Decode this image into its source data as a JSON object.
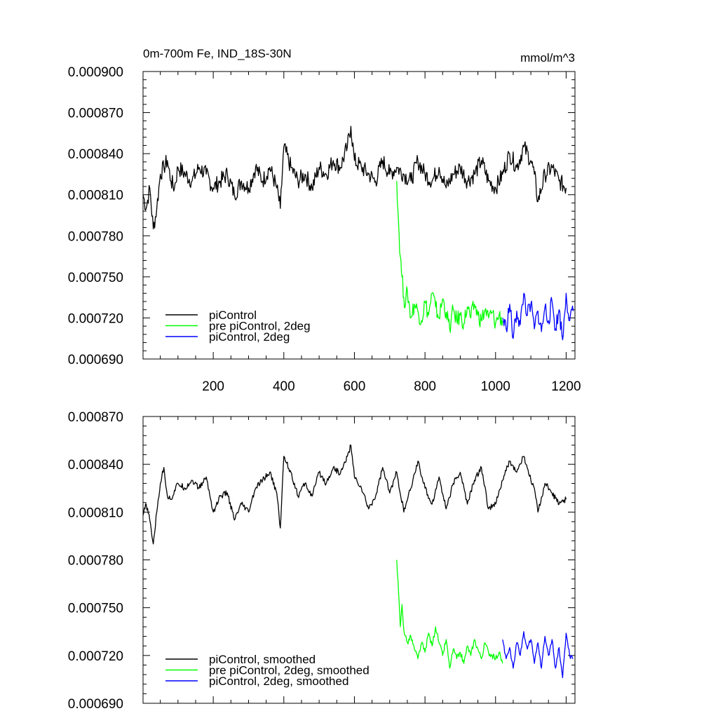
{
  "chart_data": [
    {
      "type": "line",
      "title": "0m-700m Fe, IND_18S-30N",
      "units": "mmol/m^3",
      "xlabel": "",
      "ylabel": "",
      "xlim": [
        1,
        1225
      ],
      "ylim": [
        0.00069,
        0.0009
      ],
      "xticks": [
        200,
        400,
        600,
        800,
        1000,
        1200
      ],
      "xtick_labels": [
        "200",
        "400",
        "600",
        "800",
        "1000",
        "1200"
      ],
      "yticks": [
        0.00069,
        0.00072,
        0.00075,
        0.00078,
        0.00081,
        0.00084,
        0.00087,
        0.0009
      ],
      "ytick_labels": [
        "0.000690",
        "0.000720",
        "0.000750",
        "0.000780",
        "0.000810",
        "0.000840",
        "0.000870",
        "0.000900"
      ],
      "legend_position": "bottom-left",
      "series": [
        {
          "name": "piControl",
          "color": "#000000",
          "x": [
            1,
            10,
            20,
            30,
            40,
            50,
            60,
            70,
            80,
            90,
            100,
            120,
            140,
            160,
            180,
            200,
            220,
            240,
            260,
            280,
            300,
            320,
            340,
            360,
            380,
            390,
            400,
            420,
            440,
            460,
            480,
            500,
            520,
            540,
            560,
            580,
            590,
            600,
            620,
            640,
            660,
            680,
            700,
            720,
            740,
            760,
            780,
            800,
            820,
            840,
            860,
            880,
            900,
            920,
            940,
            960,
            980,
            1000,
            1020,
            1040,
            1060,
            1080,
            1100,
            1110,
            1120,
            1140,
            1160,
            1180,
            1200
          ],
          "y": [
            0.00081,
            0.0008,
            0.000815,
            0.000785,
            0.0008,
            0.000825,
            0.00083,
            0.000835,
            0.00082,
            0.000815,
            0.00083,
            0.000825,
            0.00082,
            0.00083,
            0.000825,
            0.000815,
            0.00082,
            0.000825,
            0.00081,
            0.00082,
            0.000815,
            0.00083,
            0.00082,
            0.00083,
            0.000815,
            0.0008,
            0.000845,
            0.00083,
            0.00082,
            0.000825,
            0.000815,
            0.00083,
            0.000825,
            0.000835,
            0.00083,
            0.000845,
            0.00086,
            0.000835,
            0.00083,
            0.000825,
            0.00082,
            0.000835,
            0.000825,
            0.00083,
            0.000825,
            0.00082,
            0.000835,
            0.000825,
            0.00082,
            0.00083,
            0.000815,
            0.000825,
            0.00083,
            0.00082,
            0.000825,
            0.000835,
            0.00082,
            0.000815,
            0.000825,
            0.00084,
            0.00083,
            0.000845,
            0.000835,
            0.000825,
            0.000805,
            0.000825,
            0.00083,
            0.00082,
            0.000815
          ]
        },
        {
          "name": "pre piControl, 2deg",
          "color": "#00ff00",
          "x": [
            720,
            725,
            730,
            735,
            740,
            745,
            750,
            760,
            770,
            780,
            790,
            800,
            810,
            820,
            830,
            840,
            850,
            860,
            870,
            880,
            890,
            900,
            910,
            920,
            930,
            940,
            950,
            960,
            970,
            980,
            990,
            1000,
            1010,
            1020
          ],
          "y": [
            0.00082,
            0.00079,
            0.000765,
            0.00075,
            0.000735,
            0.00073,
            0.00074,
            0.00072,
            0.00073,
            0.000725,
            0.000718,
            0.000732,
            0.000722,
            0.000738,
            0.000728,
            0.00072,
            0.000734,
            0.000724,
            0.000712,
            0.000726,
            0.000718,
            0.000722,
            0.000716,
            0.000728,
            0.00072,
            0.00073,
            0.000722,
            0.000718,
            0.000726,
            0.00072,
            0.000724,
            0.000716,
            0.000722,
            0.000718
          ]
        },
        {
          "name": "piControl, 2deg",
          "color": "#0000ff",
          "x": [
            1020,
            1030,
            1040,
            1050,
            1060,
            1070,
            1080,
            1090,
            1100,
            1110,
            1120,
            1130,
            1140,
            1150,
            1160,
            1170,
            1180,
            1190,
            1200,
            1210,
            1220
          ],
          "y": [
            0.00072,
            0.000712,
            0.00073,
            0.000705,
            0.000725,
            0.000715,
            0.000738,
            0.000722,
            0.00073,
            0.000712,
            0.000725,
            0.00071,
            0.000728,
            0.000718,
            0.000732,
            0.000712,
            0.000726,
            0.000704,
            0.000738,
            0.000718,
            0.000725
          ]
        }
      ]
    },
    {
      "type": "line",
      "title": "",
      "xlabel": "",
      "ylabel": "",
      "xlim": [
        1,
        1225
      ],
      "ylim": [
        0.00069,
        0.00087
      ],
      "xticks": [
        200,
        400,
        600,
        800,
        1000,
        1200
      ],
      "yticks": [
        0.00069,
        0.00072,
        0.00075,
        0.00078,
        0.00081,
        0.00084,
        0.00087
      ],
      "ytick_labels": [
        "0.000690",
        "0.000720",
        "0.000750",
        "0.000780",
        "0.000810",
        "0.000840",
        "0.000870"
      ],
      "legend_position": "bottom-left",
      "series": [
        {
          "name": "piControl, smoothed",
          "color": "#000000",
          "x": [
            1,
            10,
            20,
            30,
            40,
            50,
            60,
            70,
            80,
            100,
            120,
            140,
            160,
            180,
            200,
            220,
            240,
            260,
            280,
            300,
            320,
            340,
            360,
            380,
            390,
            400,
            420,
            440,
            460,
            480,
            500,
            520,
            540,
            560,
            580,
            590,
            600,
            620,
            640,
            660,
            680,
            700,
            720,
            740,
            760,
            780,
            800,
            820,
            840,
            860,
            880,
            900,
            920,
            940,
            960,
            980,
            1000,
            1020,
            1040,
            1060,
            1080,
            1100,
            1110,
            1120,
            1140,
            1160,
            1180,
            1200
          ],
          "y": [
            0.000808,
            0.000815,
            0.000805,
            0.00079,
            0.00081,
            0.000828,
            0.000838,
            0.00082,
            0.000818,
            0.000828,
            0.000825,
            0.00083,
            0.000825,
            0.000832,
            0.00081,
            0.00082,
            0.000822,
            0.000805,
            0.000815,
            0.00081,
            0.000825,
            0.00083,
            0.000835,
            0.000822,
            0.0008,
            0.000845,
            0.000835,
            0.00082,
            0.000828,
            0.00082,
            0.000835,
            0.000828,
            0.000838,
            0.000834,
            0.000845,
            0.000852,
            0.000832,
            0.000825,
            0.000812,
            0.00082,
            0.000838,
            0.000822,
            0.000835,
            0.00081,
            0.000825,
            0.000842,
            0.000825,
            0.000815,
            0.000832,
            0.000812,
            0.000828,
            0.000835,
            0.000815,
            0.00083,
            0.000838,
            0.000812,
            0.000815,
            0.00083,
            0.000842,
            0.000835,
            0.000845,
            0.00083,
            0.000825,
            0.00081,
            0.000828,
            0.000822,
            0.000815,
            0.000818
          ]
        },
        {
          "name": "pre piControl, 2deg, smoothed",
          "color": "#00ff00",
          "x": [
            720,
            725,
            730,
            735,
            740,
            750,
            760,
            770,
            780,
            790,
            800,
            810,
            820,
            830,
            840,
            850,
            860,
            870,
            880,
            890,
            900,
            910,
            920,
            930,
            940,
            950,
            960,
            970,
            980,
            990,
            1000,
            1010,
            1020
          ],
          "y": [
            0.00078,
            0.00076,
            0.000738,
            0.000752,
            0.000736,
            0.000728,
            0.000732,
            0.000724,
            0.000718,
            0.000728,
            0.000722,
            0.000734,
            0.000726,
            0.000738,
            0.000728,
            0.00072,
            0.00073,
            0.000712,
            0.000724,
            0.000718,
            0.000722,
            0.000715,
            0.000726,
            0.00072,
            0.00073,
            0.000724,
            0.000718,
            0.000728,
            0.000722,
            0.00072,
            0.000718,
            0.000722,
            0.000715
          ]
        },
        {
          "name": "piControl, 2deg, smoothed",
          "color": "#0000ff",
          "x": [
            1020,
            1030,
            1040,
            1050,
            1060,
            1070,
            1080,
            1090,
            1100,
            1110,
            1120,
            1130,
            1140,
            1150,
            1160,
            1170,
            1180,
            1190,
            1200,
            1210,
            1220
          ],
          "y": [
            0.00073,
            0.000718,
            0.000725,
            0.000712,
            0.000728,
            0.00072,
            0.000735,
            0.000724,
            0.00073,
            0.000715,
            0.000728,
            0.000712,
            0.000732,
            0.00072,
            0.00073,
            0.000712,
            0.000725,
            0.000706,
            0.000734,
            0.00072,
            0.000718
          ]
        }
      ]
    }
  ]
}
